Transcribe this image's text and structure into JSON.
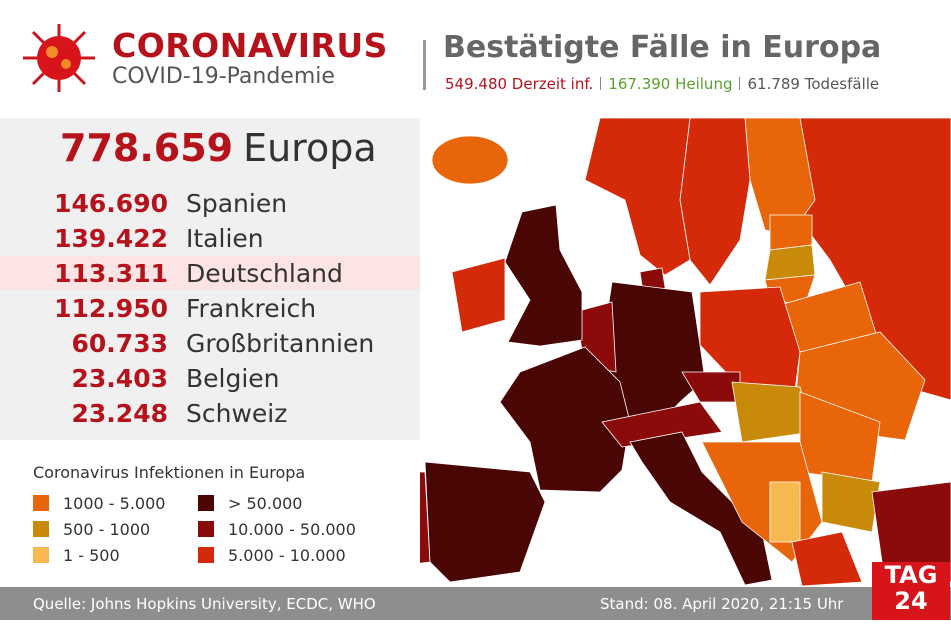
{
  "header": {
    "title": "CORONAVIRUS",
    "subtitle": "COVID-19-Pandemie",
    "heading": "Bestätigte Fälle in Europa",
    "stats": [
      {
        "text": "549.480 Derzeit inf.",
        "color": "#b5121b"
      },
      {
        "text": "167.390 Heilung",
        "color": "#5aa02c"
      },
      {
        "text": "61.789 Todesfälle",
        "color": "#555555"
      }
    ]
  },
  "table": {
    "total": [
      "778.659",
      "Europa"
    ],
    "rows": [
      [
        "146.690",
        "Spanien"
      ],
      [
        "139.422",
        "Italien"
      ],
      [
        "113.311",
        "Deutschland"
      ],
      [
        "112.950",
        "Frankreich"
      ],
      [
        "60.733",
        "Großbritannien"
      ],
      [
        "23.403",
        "Belgien"
      ],
      [
        "23.248",
        "Schweiz"
      ]
    ],
    "highlight_row": 2
  },
  "legend": {
    "title": "Coronavirus Infektionen in Europa",
    "items": [
      {
        "label": "1000 - 5.000",
        "color": "#e8650a"
      },
      {
        "label": "500 - 1000",
        "color": "#c98a0a"
      },
      {
        "label": "1 - 500",
        "color": "#f8b850"
      },
      {
        "label": "> 50.000",
        "color": "#4a0505"
      },
      {
        "label": "10.000 - 50.000",
        "color": "#8b0a0a"
      },
      {
        "label": "5.000 - 10.000",
        "color": "#d42a0a"
      }
    ]
  },
  "footer": {
    "source": "Quelle: Johns Hopkins University, ECDC, WHO",
    "date": "Stand: 08. April 2020, 21:15 Uhr"
  },
  "logo": [
    "TAG",
    "24"
  ]
}
